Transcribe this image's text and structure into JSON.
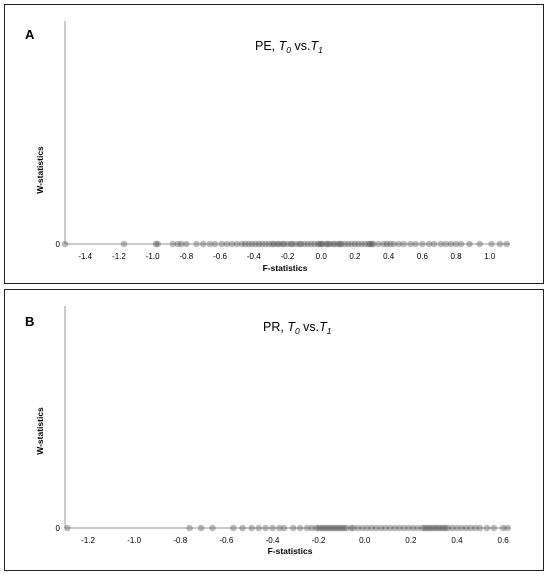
{
  "chart_data": [
    {
      "type": "scatter",
      "panel_label": "A",
      "title_parts": [
        {
          "text": "PE, ",
          "italic": false,
          "sub": false
        },
        {
          "text": "T",
          "italic": true,
          "sub": false
        },
        {
          "text": "0",
          "italic": true,
          "sub": true
        },
        {
          "text": " vs.",
          "italic": false,
          "sub": false
        },
        {
          "text": "T",
          "italic": true,
          "sub": false
        },
        {
          "text": "1",
          "italic": true,
          "sub": true
        }
      ],
      "xlabel": "F-statistics",
      "ylabel": "W-statistics",
      "xlim": [
        -1.52,
        1.12
      ],
      "x_ticks": [
        -1.4,
        -1.2,
        -1.0,
        -0.8,
        -0.6,
        -0.4,
        -0.2,
        0.0,
        0.2,
        0.4,
        0.6,
        0.8,
        1.0
      ],
      "x_tick_labels": [
        "-1.4",
        "-1.2",
        "-1.0",
        "-0.8",
        "-0.6",
        "-0.4",
        "-0.2",
        "0.0",
        "0.2",
        "0.4",
        "0.6",
        "0.8",
        "1.0"
      ],
      "y_tick_labels": [
        "0"
      ],
      "marker_color": "#555555",
      "x": [
        -1.52,
        -1.17,
        -0.98,
        -0.97,
        -0.88,
        -0.85,
        -0.83,
        -0.8,
        -0.74,
        -0.7,
        -0.66,
        -0.63,
        -0.59,
        -0.56,
        -0.53,
        -0.5,
        -0.47,
        -0.45,
        -0.43,
        -0.41,
        -0.39,
        -0.37,
        -0.35,
        -0.33,
        -0.31,
        -0.29,
        -0.28,
        -0.26,
        -0.25,
        -0.23,
        -0.22,
        -0.2,
        -0.18,
        -0.17,
        -0.15,
        -0.13,
        -0.12,
        -0.1,
        -0.08,
        -0.06,
        -0.04,
        -0.02,
        -0.01,
        0.0,
        0.01,
        0.03,
        0.04,
        0.05,
        0.07,
        0.08,
        0.1,
        0.11,
        0.12,
        0.14,
        0.16,
        0.18,
        0.2,
        0.22,
        0.24,
        0.26,
        0.28,
        0.29,
        0.3,
        0.31,
        0.34,
        0.37,
        0.39,
        0.41,
        0.43,
        0.46,
        0.49,
        0.53,
        0.56,
        0.6,
        0.64,
        0.67,
        0.71,
        0.74,
        0.77,
        0.8,
        0.83,
        0.88,
        0.94,
        1.01,
        1.06,
        1.1
      ],
      "y": [
        0,
        0,
        0,
        0,
        0,
        0,
        0,
        0,
        0,
        0,
        0,
        0,
        0,
        0,
        0,
        0,
        0,
        0,
        0,
        0,
        0,
        0,
        0,
        0,
        0,
        0,
        0,
        0,
        0,
        0,
        0,
        0,
        0,
        0,
        0,
        0,
        0,
        0,
        0,
        0,
        0,
        0,
        0,
        0,
        0,
        0,
        0,
        0,
        0,
        0,
        0,
        0,
        0,
        0,
        0,
        0,
        0,
        0,
        0,
        0,
        0,
        0,
        0,
        0,
        0,
        0,
        0,
        0,
        0,
        0,
        0,
        0,
        0,
        0,
        0,
        0,
        0,
        0,
        0,
        0,
        0,
        0,
        0,
        0,
        0,
        0
      ]
    },
    {
      "type": "scatter",
      "panel_label": "B",
      "title_parts": [
        {
          "text": "PR, ",
          "italic": false,
          "sub": false
        },
        {
          "text": "T",
          "italic": true,
          "sub": false
        },
        {
          "text": "0",
          "italic": true,
          "sub": true
        },
        {
          "text": " vs.",
          "italic": false,
          "sub": false
        },
        {
          "text": "T",
          "italic": true,
          "sub": false
        },
        {
          "text": "1",
          "italic": true,
          "sub": true
        }
      ],
      "xlabel": "F-statistics",
      "ylabel": "W-statistics",
      "xlim": [
        -1.3,
        0.63
      ],
      "x_ticks": [
        -1.2,
        -1.0,
        -0.8,
        -0.6,
        -0.4,
        -0.2,
        0.0,
        0.2,
        0.4,
        0.6
      ],
      "x_tick_labels": [
        "-1.2",
        "-1.0",
        "-0.8",
        "-0.6",
        "-0.4",
        "-0.2",
        "0.0",
        "0.2",
        "0.4",
        "0.6"
      ],
      "y_tick_labels": [
        "0"
      ],
      "marker_color": "#555555",
      "x": [
        -1.29,
        -0.76,
        -0.71,
        -0.66,
        -0.57,
        -0.53,
        -0.49,
        -0.46,
        -0.43,
        -0.4,
        -0.37,
        -0.35,
        -0.31,
        -0.28,
        -0.25,
        -0.23,
        -0.21,
        -0.2,
        -0.19,
        -0.18,
        -0.17,
        -0.16,
        -0.15,
        -0.14,
        -0.13,
        -0.12,
        -0.11,
        -0.1,
        -0.09,
        -0.08,
        -0.06,
        -0.05,
        -0.03,
        -0.01,
        0.01,
        0.03,
        0.05,
        0.07,
        0.09,
        0.11,
        0.13,
        0.15,
        0.17,
        0.19,
        0.21,
        0.23,
        0.25,
        0.26,
        0.27,
        0.28,
        0.29,
        0.3,
        0.31,
        0.32,
        0.33,
        0.34,
        0.35,
        0.36,
        0.38,
        0.4,
        0.42,
        0.44,
        0.46,
        0.48,
        0.5,
        0.53,
        0.56,
        0.6,
        0.62
      ],
      "y": [
        0,
        0,
        0,
        0,
        0,
        0,
        0,
        0,
        0,
        0,
        0,
        0,
        0,
        0,
        0,
        0,
        0,
        0,
        0,
        0,
        0,
        0,
        0,
        0,
        0,
        0,
        0,
        0,
        0,
        0,
        0,
        0,
        0,
        0,
        0,
        0,
        0,
        0,
        0,
        0,
        0,
        0,
        0,
        0,
        0,
        0,
        0,
        0,
        0,
        0,
        0,
        0,
        0,
        0,
        0,
        0,
        0,
        0,
        0,
        0,
        0,
        0,
        0,
        0,
        0,
        0,
        0,
        0,
        0
      ]
    }
  ]
}
